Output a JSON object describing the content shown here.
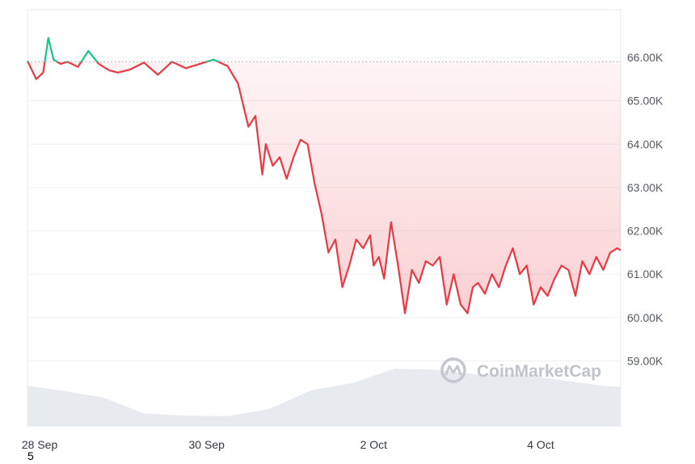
{
  "watermark": "CoinMarketCap",
  "page_number": "5",
  "colors": {
    "down": "#ea3943",
    "up": "#16c784",
    "volume": "#e7ebf0",
    "grid": "#eef0f3",
    "reference_line": "#9aa0a8"
  },
  "chart_data": {
    "type": "line",
    "x_unit": "date",
    "x_labels": [
      "28 Sep",
      "30 Sep",
      "2 Oct",
      "4 Oct"
    ],
    "x_label_dates": [
      "2024-09-28",
      "2024-09-30",
      "2024-10-02",
      "2024-10-04"
    ],
    "x_range": [
      "2024-09-27 20:30",
      "2024-10-04 23:00"
    ],
    "y_ticks": [
      "59.00K",
      "60.00K",
      "61.00K",
      "62.00K",
      "63.00K",
      "64.00K",
      "65.00K",
      "66.00K"
    ],
    "y_tick_values": [
      59000,
      60000,
      61000,
      62000,
      63000,
      64000,
      65000,
      66000
    ],
    "ylim": [
      57500,
      67100
    ],
    "reference_value": 65900,
    "grid": true,
    "price_series": {
      "x": [
        "2024-09-27 20:30",
        "2024-09-27 23:00",
        "2024-09-28 01:00",
        "2024-09-28 02:30",
        "2024-09-28 04:00",
        "2024-09-28 06:00",
        "2024-09-28 08:00",
        "2024-09-28 11:00",
        "2024-09-28 14:00",
        "2024-09-28 17:00",
        "2024-09-28 20:00",
        "2024-09-28 22:30",
        "2024-09-29 02:00",
        "2024-09-29 06:00",
        "2024-09-29 10:00",
        "2024-09-29 14:00",
        "2024-09-29 18:00",
        "2024-09-29 22:00",
        "2024-09-30 02:00",
        "2024-09-30 06:00",
        "2024-09-30 09:00",
        "2024-09-30 12:00",
        "2024-09-30 14:00",
        "2024-09-30 16:00",
        "2024-09-30 17:00",
        "2024-09-30 19:00",
        "2024-09-30 21:00",
        "2024-09-30 23:00",
        "2024-10-01 01:00",
        "2024-10-01 03:00",
        "2024-10-01 05:00",
        "2024-10-01 07:00",
        "2024-10-01 09:00",
        "2024-10-01 11:00",
        "2024-10-01 13:00",
        "2024-10-01 15:00",
        "2024-10-01 17:00",
        "2024-10-01 19:00",
        "2024-10-01 21:00",
        "2024-10-01 23:00",
        "2024-10-02 00:00",
        "2024-10-02 01:30",
        "2024-10-02 03:00",
        "2024-10-02 05:00",
        "2024-10-02 07:00",
        "2024-10-02 09:00",
        "2024-10-02 11:00",
        "2024-10-02 13:00",
        "2024-10-02 15:00",
        "2024-10-02 17:00",
        "2024-10-02 19:00",
        "2024-10-02 21:00",
        "2024-10-02 23:00",
        "2024-10-03 01:00",
        "2024-10-03 03:00",
        "2024-10-03 04:30",
        "2024-10-03 06:00",
        "2024-10-03 08:00",
        "2024-10-03 10:00",
        "2024-10-03 12:00",
        "2024-10-03 14:00",
        "2024-10-03 16:00",
        "2024-10-03 18:00",
        "2024-10-03 20:00",
        "2024-10-03 22:00",
        "2024-10-04 00:00",
        "2024-10-04 02:00",
        "2024-10-04 04:00",
        "2024-10-04 06:00",
        "2024-10-04 08:00",
        "2024-10-04 10:00",
        "2024-10-04 12:00",
        "2024-10-04 14:00",
        "2024-10-04 16:00",
        "2024-10-04 18:00",
        "2024-10-04 20:00",
        "2024-10-04 22:00",
        "2024-10-04 23:00"
      ],
      "y": [
        65920,
        65500,
        65650,
        66450,
        65950,
        65850,
        65900,
        65780,
        66150,
        65850,
        65700,
        65650,
        65720,
        65880,
        65600,
        65900,
        65750,
        65850,
        65950,
        65800,
        65400,
        64400,
        64650,
        63300,
        64000,
        63500,
        63700,
        63200,
        63700,
        64100,
        64000,
        63100,
        62400,
        61500,
        61800,
        60700,
        61200,
        61800,
        61600,
        61900,
        61200,
        61400,
        60900,
        62200,
        61200,
        60100,
        61100,
        60800,
        61300,
        61200,
        61400,
        60300,
        61000,
        60300,
        60100,
        60700,
        60800,
        60550,
        61000,
        60700,
        61200,
        61600,
        61000,
        61200,
        60300,
        60700,
        60500,
        60900,
        61200,
        61100,
        60500,
        61300,
        61000,
        61400,
        61100,
        61500,
        61600,
        61550
      ]
    },
    "volume_series": {
      "x": [
        "2024-09-27 20:30",
        "2024-09-28 06:00",
        "2024-09-28 18:00",
        "2024-09-29 06:00",
        "2024-09-29 18:00",
        "2024-09-30 06:00",
        "2024-09-30 18:00",
        "2024-10-01 06:00",
        "2024-10-01 18:00",
        "2024-10-02 06:00",
        "2024-10-02 18:00",
        "2024-10-03 06:00",
        "2024-10-03 18:00",
        "2024-10-04 06:00",
        "2024-10-04 18:00",
        "2024-10-04 23:00"
      ],
      "level": [
        0.7,
        0.62,
        0.5,
        0.22,
        0.18,
        0.17,
        0.3,
        0.62,
        0.75,
        1.0,
        0.98,
        0.9,
        0.9,
        0.8,
        0.7,
        0.68
      ]
    }
  }
}
